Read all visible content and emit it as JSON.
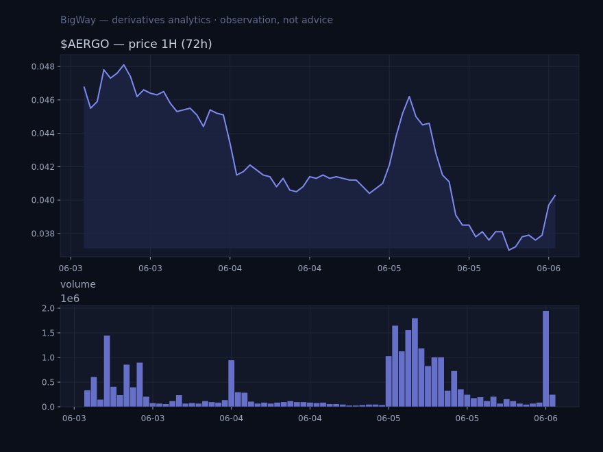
{
  "header": {
    "subtitle": "BigWay — derivatives analytics · observation, not advice",
    "title": "$AERGO — price 1H (72h)"
  },
  "colors": {
    "background": "#0b0f1a",
    "panel": "#121828",
    "line": "#7f89f0",
    "bar": "#6670c8",
    "text_dim": "#5f6a87",
    "text": "#c9d0e0",
    "tick": "#9aa3b8"
  },
  "chart_data": [
    {
      "type": "line",
      "title": "$AERGO — price 1H (72h)",
      "x_index": "hour 0..71",
      "x_tick_labels": [
        "06-03",
        "06-03",
        "06-04",
        "06-04",
        "06-05",
        "06-05",
        "06-06"
      ],
      "x_tick_positions": [
        -2,
        10,
        22,
        34,
        46,
        58,
        70
      ],
      "ylim": [
        0.0366,
        0.0487
      ],
      "y_ticks": [
        0.038,
        0.04,
        0.042,
        0.044,
        0.046,
        0.048
      ],
      "y_tick_labels": [
        "0.038",
        "0.040",
        "0.042",
        "0.044",
        "0.046",
        "0.048"
      ],
      "grid": true,
      "fill_baseline": 0.0371,
      "series": [
        {
          "values": [
            0.0468,
            0.0455,
            0.0459,
            0.0478,
            0.0473,
            0.0476,
            0.0481,
            0.0474,
            0.0462,
            0.0466,
            0.0464,
            0.0463,
            0.0465,
            0.0458,
            0.0453,
            0.0454,
            0.0455,
            0.0451,
            0.0444,
            0.0454,
            0.0452,
            0.0451,
            0.0434,
            0.0415,
            0.0417,
            0.0421,
            0.0418,
            0.0415,
            0.0414,
            0.0408,
            0.0413,
            0.0406,
            0.0405,
            0.0408,
            0.0414,
            0.0413,
            0.0415,
            0.0413,
            0.0414,
            0.0413,
            0.0412,
            0.0412,
            0.0408,
            0.0404,
            0.0407,
            0.041,
            0.0421,
            0.0438,
            0.0452,
            0.0462,
            0.045,
            0.0445,
            0.0446,
            0.0428,
            0.0415,
            0.0411,
            0.0391,
            0.0385,
            0.0385,
            0.0378,
            0.0381,
            0.0376,
            0.0381,
            0.0381,
            0.037,
            0.0372,
            0.0378,
            0.0379,
            0.0376,
            0.0379,
            0.0397,
            0.0403
          ]
        }
      ]
    },
    {
      "type": "bar",
      "title": "volume",
      "y_scale_label": "1e6",
      "x_index": "hour 0..71",
      "x_tick_labels": [
        "06-03",
        "06-03",
        "06-04",
        "06-04",
        "06-05",
        "06-05",
        "06-06"
      ],
      "x_tick_positions": [
        -2,
        10,
        22,
        34,
        46,
        58,
        70
      ],
      "ylim": [
        0,
        2.0
      ],
      "y_ticks": [
        0.0,
        0.5,
        1.0,
        1.5,
        2.0
      ],
      "y_tick_labels": [
        "0.0",
        "0.5",
        "1.0",
        "1.5",
        "2.0"
      ],
      "grid": true,
      "values": [
        0.34,
        0.61,
        0.15,
        1.45,
        0.41,
        0.24,
        0.86,
        0.4,
        0.9,
        0.21,
        0.08,
        0.07,
        0.06,
        0.12,
        0.24,
        0.07,
        0.08,
        0.07,
        0.12,
        0.1,
        0.09,
        0.14,
        0.95,
        0.3,
        0.29,
        0.11,
        0.07,
        0.09,
        0.07,
        0.09,
        0.1,
        0.12,
        0.1,
        0.1,
        0.09,
        0.08,
        0.09,
        0.06,
        0.06,
        0.05,
        0.03,
        0.03,
        0.04,
        0.05,
        0.05,
        0.04,
        1.03,
        1.65,
        1.13,
        1.56,
        1.8,
        1.19,
        0.83,
        1.01,
        1.01,
        0.33,
        0.73,
        0.36,
        0.25,
        0.18,
        0.2,
        0.12,
        0.21,
        0.07,
        0.16,
        0.12,
        0.07,
        0.05,
        0.07,
        0.09,
        1.95,
        0.25
      ]
    }
  ]
}
